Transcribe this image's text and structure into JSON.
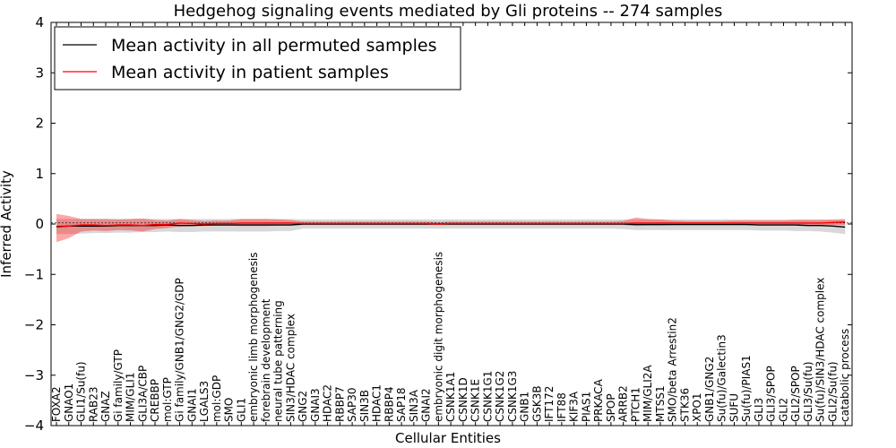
{
  "chart_data": {
    "type": "line",
    "title": "Hedgehog signaling events mediated by Gli proteins -- 274 samples",
    "xlabel": "Cellular Entities",
    "ylabel": "Inferred Activity",
    "ylim": [
      -4,
      4
    ],
    "yticks": [
      {
        "value": 4,
        "label": "4"
      },
      {
        "value": 3,
        "label": "3"
      },
      {
        "value": 2,
        "label": "2"
      },
      {
        "value": 1,
        "label": "1"
      },
      {
        "value": 0,
        "label": "0"
      },
      {
        "value": -1,
        "label": "−1"
      },
      {
        "value": -2,
        "label": "−2"
      },
      {
        "value": -3,
        "label": "−3"
      },
      {
        "value": -4,
        "label": "−4"
      }
    ],
    "grid": false,
    "legend_position": "top-left",
    "legend": [
      "Mean activity in all permuted samples",
      "Mean activity in patient samples"
    ],
    "categories": [
      "FOXA2",
      "GNAO1",
      "GLI1/Su(fu)",
      "RAB23",
      "GNAZ",
      "Gi family/GTP",
      "MIM/GLI1",
      "GLI3A/CBP",
      "CREBBP",
      "mol:GTP",
      "Gi family/GNB1/GNG2/GDP",
      "GNAI1",
      "LGALS3",
      "mol:GDP",
      "SMO",
      "GLI1",
      "embryonic limb morphogenesis",
      "forebrain development",
      "neural tube patterning",
      "SIN3/HDAC complex",
      "GNG2",
      "GNAI3",
      "HDAC2",
      "RBBP7",
      "SAP30",
      "SIN3B",
      "HDAC1",
      "RBBP4",
      "SAP18",
      "SIN3A",
      "GNAI2",
      "embryonic digit morphogenesis",
      "CSNK1A1",
      "CSNK1D",
      "CSNK1E",
      "CSNK1G1",
      "CSNK1G2",
      "CSNK1G3",
      "GNB1",
      "GSK3B",
      "IFT172",
      "IFT88",
      "KIF3A",
      "PIAS1",
      "PRKACA",
      "SPOP",
      "ARRB2",
      "PTCH1",
      "MIM/GLI2A",
      "MTSS1",
      "SMO/beta Arrestin2",
      "STK36",
      "XPO1",
      "GNB1/GNG2",
      "Su(fu)/Galectin3",
      "SUFU",
      "Su(fu)/PIAS1",
      "GLI3",
      "GLI3/SPOP",
      "GLI2",
      "GLI2/SPOP",
      "GLI3/Su(fu)",
      "Su(fu)/SIN3/HDAC complex",
      "GLI2/Su(fu)",
      "catabolic process"
    ],
    "series": [
      {
        "name": "Mean activity in all permuted samples",
        "color": "#000000",
        "values": [
          -0.05,
          -0.04,
          -0.04,
          -0.04,
          -0.04,
          -0.03,
          -0.03,
          -0.03,
          -0.03,
          -0.02,
          -0.03,
          -0.03,
          -0.02,
          -0.02,
          -0.02,
          -0.02,
          -0.02,
          -0.02,
          -0.02,
          -0.02,
          0,
          0,
          0,
          0,
          0,
          0,
          0,
          0,
          0,
          0,
          0,
          0,
          0,
          0,
          0,
          0,
          0,
          0,
          0,
          0,
          0,
          0,
          0,
          0,
          0,
          0,
          0,
          -0.01,
          -0.01,
          -0.01,
          -0.01,
          -0.01,
          -0.01,
          -0.01,
          -0.01,
          -0.01,
          -0.01,
          -0.02,
          -0.02,
          -0.02,
          -0.02,
          -0.03,
          -0.03,
          -0.04,
          -0.06
        ],
        "band_lower": [
          -0.2,
          -0.2,
          -0.19,
          -0.18,
          -0.18,
          -0.17,
          -0.17,
          -0.16,
          -0.16,
          -0.15,
          -0.16,
          -0.16,
          -0.15,
          -0.15,
          -0.15,
          -0.15,
          -0.15,
          -0.15,
          -0.14,
          -0.14,
          -0.09,
          -0.09,
          -0.09,
          -0.09,
          -0.09,
          -0.09,
          -0.09,
          -0.09,
          -0.09,
          -0.09,
          -0.09,
          -0.09,
          -0.09,
          -0.09,
          -0.09,
          -0.09,
          -0.09,
          -0.09,
          -0.09,
          -0.09,
          -0.09,
          -0.09,
          -0.09,
          -0.09,
          -0.09,
          -0.09,
          -0.1,
          -0.12,
          -0.12,
          -0.12,
          -0.12,
          -0.12,
          -0.12,
          -0.12,
          -0.12,
          -0.12,
          -0.12,
          -0.13,
          -0.13,
          -0.13,
          -0.14,
          -0.14,
          -0.15,
          -0.17,
          -0.2
        ],
        "band_upper": [
          0.1,
          0.1,
          0.1,
          0.1,
          0.1,
          0.1,
          0.1,
          0.1,
          0.1,
          0.1,
          0.1,
          0.1,
          0.1,
          0.1,
          0.1,
          0.1,
          0.1,
          0.1,
          0.1,
          0.1,
          0.09,
          0.09,
          0.09,
          0.09,
          0.09,
          0.09,
          0.09,
          0.09,
          0.09,
          0.09,
          0.09,
          0.09,
          0.09,
          0.09,
          0.09,
          0.09,
          0.09,
          0.09,
          0.09,
          0.09,
          0.09,
          0.09,
          0.09,
          0.09,
          0.09,
          0.09,
          0.09,
          0.09,
          0.09,
          0.09,
          0.09,
          0.09,
          0.09,
          0.09,
          0.09,
          0.09,
          0.09,
          0.09,
          0.09,
          0.09,
          0.09,
          0.09,
          0.09,
          0.08,
          0.08
        ]
      },
      {
        "name": "Mean activity in patient samples",
        "color": "#ff0000",
        "values": [
          -0.06,
          -0.04,
          -0.02,
          -0.02,
          -0.03,
          -0.02,
          -0.02,
          -0.03,
          -0.01,
          -0.01,
          0.02,
          0.01,
          0,
          0.01,
          0.01,
          0.02,
          0.02,
          0.02,
          0.02,
          0.02,
          0.01,
          0.01,
          0.01,
          0.01,
          0.01,
          0.01,
          0.01,
          0.01,
          0.01,
          0.01,
          0.01,
          0,
          0.01,
          0.01,
          0.01,
          0.01,
          0.01,
          0.01,
          0.01,
          0.01,
          0.01,
          0.01,
          0.01,
          0.01,
          0.01,
          0.01,
          0.01,
          0.02,
          0.02,
          0.02,
          0.02,
          0.02,
          0.02,
          0.02,
          0.02,
          0.02,
          0.02,
          0.02,
          0.02,
          0.02,
          0.02,
          0.02,
          0.02,
          0.03,
          0.04
        ],
        "band_lower": [
          -0.36,
          -0.28,
          -0.15,
          -0.13,
          -0.14,
          -0.12,
          -0.13,
          -0.15,
          -0.1,
          -0.08,
          -0.05,
          -0.04,
          -0.04,
          -0.03,
          -0.03,
          -0.04,
          -0.04,
          -0.04,
          -0.03,
          -0.03,
          -0.02,
          -0.02,
          -0.02,
          -0.02,
          -0.02,
          -0.02,
          -0.02,
          -0.02,
          -0.02,
          -0.02,
          -0.02,
          -0.02,
          -0.02,
          -0.02,
          -0.02,
          -0.02,
          -0.02,
          -0.02,
          -0.02,
          -0.02,
          -0.02,
          -0.02,
          -0.02,
          -0.02,
          -0.02,
          -0.02,
          -0.02,
          -0.04,
          -0.03,
          -0.03,
          -0.02,
          -0.02,
          -0.02,
          -0.02,
          -0.02,
          -0.02,
          -0.02,
          -0.02,
          -0.02,
          -0.02,
          -0.02,
          -0.02,
          -0.02,
          -0.02,
          -0.02
        ],
        "band_upper": [
          0.2,
          0.16,
          0.1,
          0.1,
          0.1,
          0.09,
          0.1,
          0.11,
          0.08,
          0.07,
          0.1,
          0.08,
          0.06,
          0.07,
          0.07,
          0.1,
          0.1,
          0.1,
          0.09,
          0.08,
          0.05,
          0.05,
          0.05,
          0.05,
          0.05,
          0.05,
          0.05,
          0.05,
          0.05,
          0.05,
          0.05,
          0.04,
          0.05,
          0.05,
          0.05,
          0.05,
          0.05,
          0.05,
          0.05,
          0.05,
          0.05,
          0.05,
          0.05,
          0.05,
          0.05,
          0.05,
          0.06,
          0.13,
          0.1,
          0.09,
          0.07,
          0.06,
          0.06,
          0.06,
          0.06,
          0.07,
          0.07,
          0.07,
          0.07,
          0.07,
          0.08,
          0.08,
          0.08,
          0.09,
          0.1
        ]
      }
    ]
  }
}
